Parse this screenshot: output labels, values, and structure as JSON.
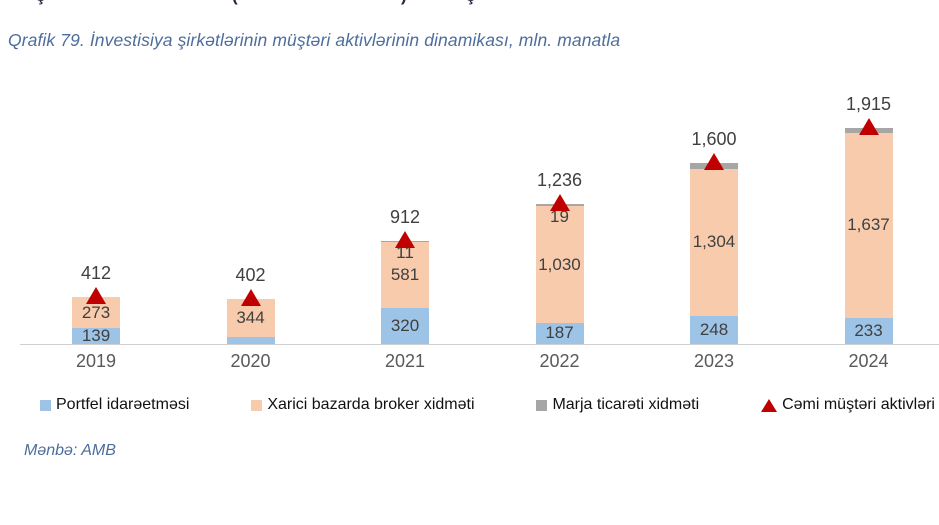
{
  "page": {
    "cropped_top_line_fragments": [
      {
        "glyph": "ş",
        "x": 36
      },
      {
        "glyph": "(",
        "x": 232
      },
      {
        "glyph": ")",
        "x": 401
      },
      {
        "glyph": "ş",
        "x": 466
      }
    ],
    "source": "Mənbə: AMB"
  },
  "colors": {
    "title_text": "#4d6d9c",
    "data_label": "#404040",
    "axis_label": "#595959",
    "legend_text": "#111111",
    "axis_line": "#d0d0d0",
    "series_blue": "#9dc3e6",
    "series_orange": "#f8cbad",
    "series_gray": "#a6a6a6",
    "marker_red": "#c00000"
  },
  "chart_data": {
    "type": "bar",
    "variant": "stacked columns with total shown as red triangle markers",
    "title": "Qrafik 79. İnvestisiya şirkətlərinin müştəri aktivlərinin dinamikası, mln. manatla",
    "unit": "mln. manatla",
    "categories": [
      "2019",
      "2020",
      "2021",
      "2022",
      "2023",
      "2024"
    ],
    "series": [
      {
        "key": "portfel",
        "name": "Portfel idarəetməsi",
        "color": "#9dc3e6",
        "values": [
          139,
          58,
          320,
          187,
          248,
          233
        ],
        "labels": [
          "139",
          null,
          "320",
          "187",
          "248",
          "233"
        ]
      },
      {
        "key": "broker",
        "name": "Xarici bazarda broker xidməti",
        "color": "#f8cbad",
        "values": [
          273,
          344,
          581,
          1030,
          1304,
          1637
        ],
        "labels": [
          "273",
          "344",
          "581",
          "1,030",
          "1,304",
          "1,637"
        ]
      },
      {
        "key": "marja",
        "name": "Marja ticarəti xidməti",
        "color": "#a6a6a6",
        "values": [
          0,
          0,
          11,
          19,
          48,
          45
        ],
        "labels": [
          null,
          null,
          "11",
          "19",
          null,
          null
        ]
      }
    ],
    "total_series": {
      "key": "cemi",
      "name": "Cəmi müştəri aktivləri",
      "marker": "triangle",
      "color": "#c00000",
      "values": [
        412,
        402,
        912,
        1236,
        1600,
        1915
      ],
      "labels": [
        "412",
        "402",
        "912",
        "1,236",
        "1,600",
        "1,915"
      ]
    },
    "legend": [
      {
        "label": "Portfel idarəetməsi",
        "marker": "square",
        "color": "#9dc3e6"
      },
      {
        "label": "Xarici bazarda broker xidməti",
        "marker": "square",
        "color": "#f8cbad"
      },
      {
        "label": "Marja ticarəti xidməti",
        "marker": "square",
        "color": "#a6a6a6"
      },
      {
        "label": "Cəmi müştəri aktivləri",
        "marker": "triangle",
        "color": "#c00000"
      }
    ],
    "ylim": [
      0,
      2000
    ],
    "grid": false,
    "legend_position": "bottom"
  }
}
